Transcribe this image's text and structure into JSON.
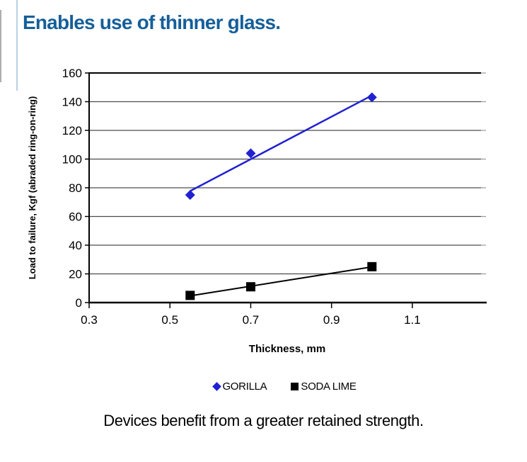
{
  "page": {
    "title": "Enables use of thinner glass.",
    "caption": "Devices benefit from a greater retained strength.",
    "title_color": "#155F99"
  },
  "colors": {
    "axis": "#000000",
    "grid": "#4D4D4D",
    "grid_nub": "#999999",
    "gorilla_blue": "#2121D1",
    "soda_lime_black": "#000000"
  },
  "chart_data": {
    "type": "scatter",
    "title": "",
    "xlabel": "Thickness, mm",
    "ylabel": "Load to failure, Kgf (abraded ring-on-ring)",
    "xlim": [
      0.3,
      1.27
    ],
    "ylim": [
      0,
      160
    ],
    "x_ticks": [
      "0.3",
      "0.5",
      "0.7",
      "0.9",
      "1.1"
    ],
    "x_tick_values": [
      0.3,
      0.5,
      0.7,
      0.9,
      1.1
    ],
    "y_ticks": [
      "0",
      "20",
      "40",
      "60",
      "80",
      "100",
      "120",
      "140",
      "160"
    ],
    "y_tick_values": [
      0,
      20,
      40,
      60,
      80,
      100,
      120,
      140,
      160
    ],
    "grid": "horizontal",
    "legend_position": "bottom",
    "series": [
      {
        "name": "GORILLA",
        "marker": "diamond",
        "color": "#2121D1",
        "trendline": true,
        "points": [
          [
            0.55,
            75
          ],
          [
            0.7,
            104
          ],
          [
            1.0,
            143
          ]
        ]
      },
      {
        "name": "SODA LIME",
        "marker": "square",
        "color": "#000000",
        "trendline": true,
        "points": [
          [
            0.55,
            5
          ],
          [
            0.7,
            11
          ],
          [
            1.0,
            25
          ]
        ]
      }
    ]
  }
}
